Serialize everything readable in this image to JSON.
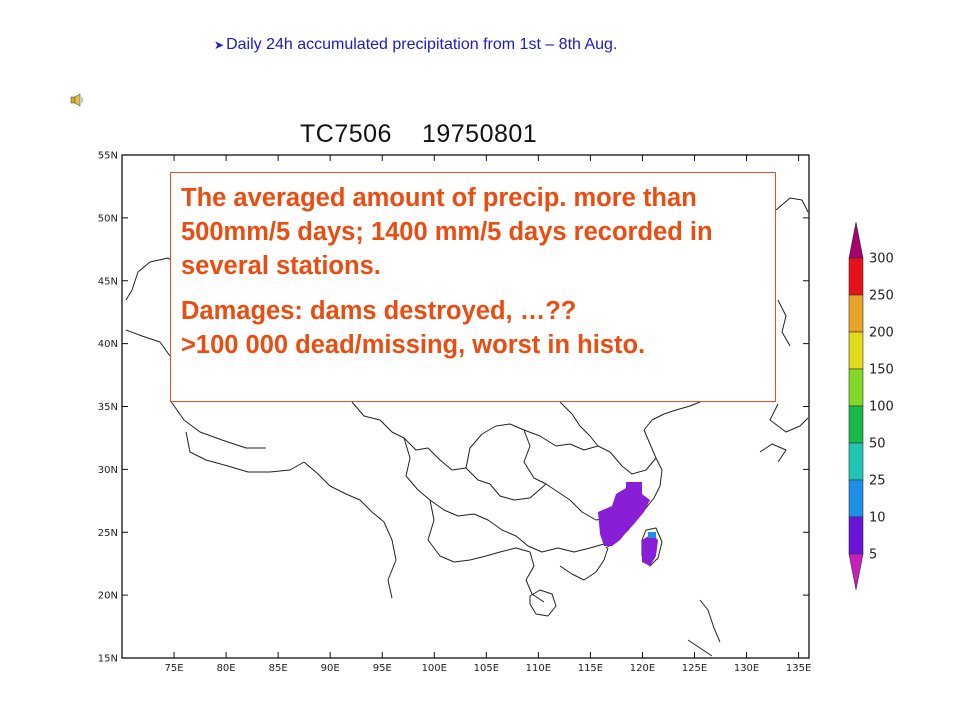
{
  "header": {
    "bullet_icon": "arrow-bullet-icon",
    "text": "Daily 24h accumulated precipitation from 1st – 8th Aug.",
    "color": "#1a1acc"
  },
  "speaker_icon": "speaker-icon",
  "map": {
    "title_id": "TC7506",
    "title_date": "19750801",
    "lat_range": [
      15,
      55
    ],
    "lon_range": [
      70,
      136
    ],
    "lat_ticks": [
      "55N",
      "50N",
      "45N",
      "40N",
      "35N",
      "30N",
      "25N",
      "20N",
      "15N"
    ],
    "lon_ticks": [
      "75E",
      "80E",
      "85E",
      "90E",
      "95E",
      "100E",
      "105E",
      "110E",
      "115E",
      "120E",
      "125E",
      "130E",
      "135E"
    ],
    "precip_color": "#8a1ed6",
    "precip_accent_color": "#1e8fe6"
  },
  "info_box": {
    "paragraph1": "The averaged amount of precip. more than 500mm/5 days; 1400 mm/5 days recorded in several stations.",
    "paragraph2_line1": "Damages: dams destroyed, …??",
    "paragraph2_line2": ">100 000 dead/missing, worst in histo.",
    "text_color": "#ec4c0f",
    "border_color": "#e8502a"
  },
  "legend": {
    "levels": [
      "300",
      "250",
      "200",
      "150",
      "100",
      "50",
      "25",
      "10",
      "5"
    ],
    "colors": [
      "#a8006e",
      "#e8101a",
      "#e8a428",
      "#e2da1c",
      "#82d828",
      "#18ba4a",
      "#20c6b4",
      "#1e8fe6",
      "#6a14d8",
      "#c81ec0"
    ]
  }
}
